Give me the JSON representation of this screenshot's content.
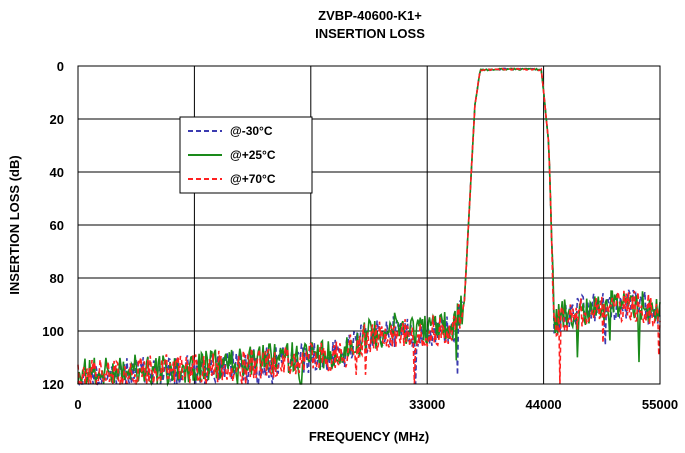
{
  "chart_data": {
    "type": "line",
    "title": "ZVBP-40600-K1+",
    "subtitle": "INSERTION LOSS",
    "xlabel": "FREQUENCY (MHz)",
    "ylabel": "INSERTION LOSS (dB)",
    "xlim": [
      0,
      55000
    ],
    "ylim": [
      0,
      120
    ],
    "y_inverted": true,
    "x_ticks": [
      "0",
      "11000",
      "22000",
      "33000",
      "44000",
      "55000"
    ],
    "y_ticks": [
      "0",
      "20",
      "40",
      "60",
      "80",
      "100",
      "120"
    ],
    "grid": true,
    "legend_position": "upper-left-inside",
    "series": [
      {
        "name": "@-30°C",
        "color": "#3b3bb0",
        "dash": "dashed",
        "x": [
          0,
          5000,
          10000,
          15000,
          20000,
          25000,
          27000,
          30000,
          33000,
          35500,
          36500,
          37500,
          38000,
          40000,
          43000,
          43800,
          44500,
          45000,
          46000,
          48000,
          50000,
          52000,
          55000
        ],
        "y": [
          117,
          116,
          115,
          113,
          111,
          109,
          103,
          100,
          100,
          99,
          90,
          15,
          1.5,
          1.2,
          1.2,
          1.5,
          30,
          97,
          95,
          92,
          91,
          90,
          92
        ]
      },
      {
        "name": "@+25°C",
        "color": "#1a8a1a",
        "dash": "solid",
        "x": [
          0,
          5000,
          10000,
          15000,
          20000,
          25000,
          27000,
          30000,
          33000,
          35500,
          36500,
          37500,
          38000,
          40000,
          43000,
          43800,
          44500,
          45000,
          46000,
          48000,
          50000,
          52000,
          55000
        ],
        "y": [
          116,
          115,
          114,
          112,
          110,
          108,
          102,
          99,
          99,
          98,
          90,
          15,
          1.5,
          1.2,
          1.2,
          1.5,
          30,
          97,
          94,
          92,
          91,
          89,
          93
        ]
      },
      {
        "name": "@+70°C",
        "color": "#ff2020",
        "dash": "dashed",
        "x": [
          0,
          5000,
          10000,
          15000,
          20000,
          25000,
          27000,
          30000,
          33000,
          35500,
          36500,
          37500,
          38000,
          40000,
          43000,
          43800,
          44500,
          45000,
          46000,
          48000,
          50000,
          52000,
          55000
        ],
        "y": [
          117,
          116,
          114,
          113,
          111,
          109,
          103,
          100,
          100,
          99,
          90,
          15,
          1.5,
          1.2,
          1.2,
          1.5,
          30,
          98,
          95,
          93,
          92,
          90,
          93
        ]
      }
    ]
  }
}
